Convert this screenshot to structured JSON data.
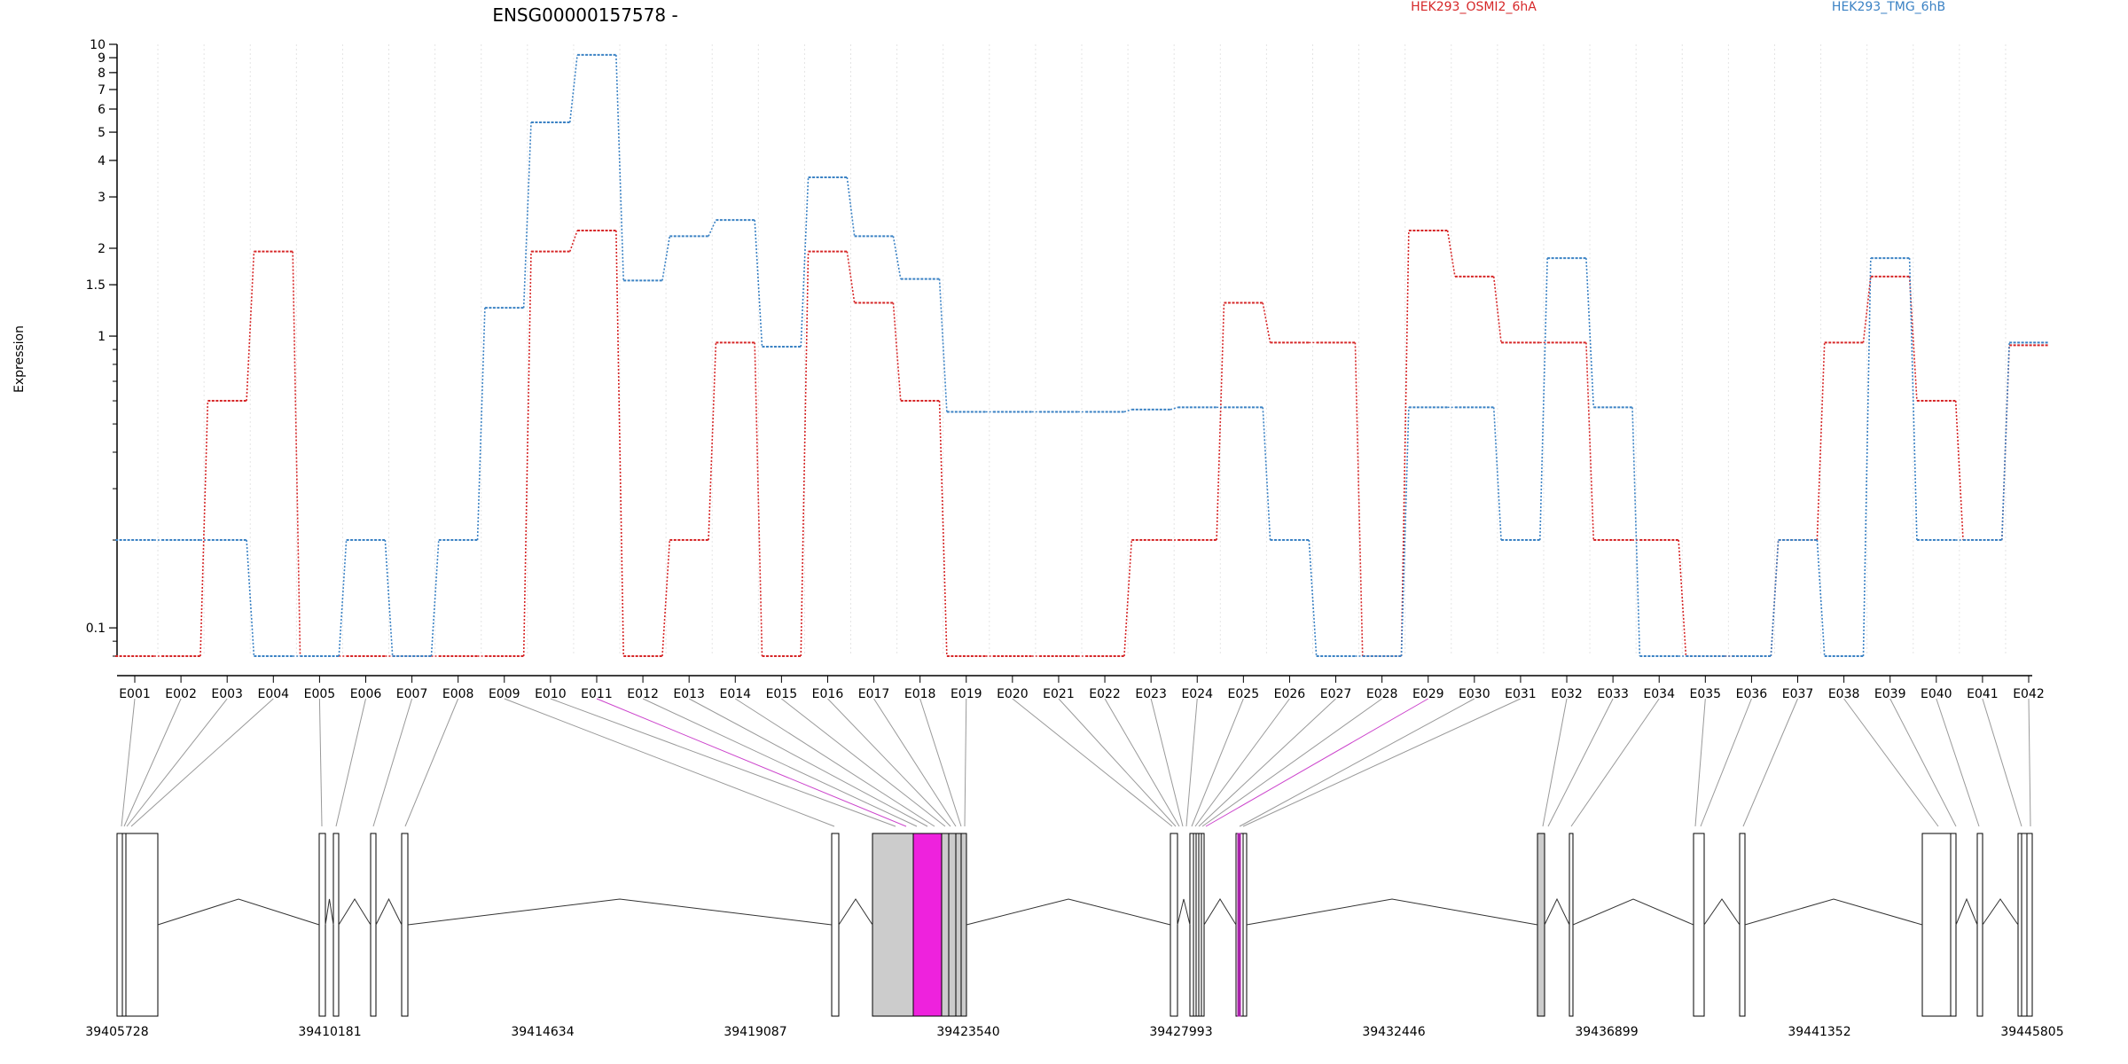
{
  "chart_data": {
    "type": "line",
    "title": "ENSG00000157578 -",
    "ylabel": "Expression",
    "xlabel": "",
    "y_scale": "log",
    "y_ticks": [
      0.1,
      1,
      1.5,
      2,
      3,
      4,
      5,
      6,
      7,
      8,
      9,
      10
    ],
    "ylim": [
      0.08,
      10
    ],
    "grid": "vertical dotted lines at each exon",
    "legend_placement": "top",
    "categories": [
      "E001",
      "E002",
      "E003",
      "E004",
      "E005",
      "E006",
      "E007",
      "E008",
      "E009",
      "E010",
      "E011",
      "E012",
      "E013",
      "E014",
      "E015",
      "E016",
      "E017",
      "E018",
      "E019",
      "E020",
      "E021",
      "E022",
      "E023",
      "E024",
      "E025",
      "E026",
      "E027",
      "E028",
      "E029",
      "E030",
      "E031",
      "E032",
      "E033",
      "E034",
      "E035",
      "E036",
      "E037",
      "E038",
      "E039",
      "E040",
      "E041",
      "E042"
    ],
    "series": [
      {
        "name": "HEK293_OSMI2_6hA",
        "color": "#d62728",
        "values": [
          0.08,
          0.08,
          0.6,
          1.95,
          0.08,
          0.08,
          0.08,
          0.08,
          0.08,
          1.95,
          2.3,
          0.08,
          0.2,
          0.95,
          0.08,
          1.95,
          1.3,
          0.6,
          0.08,
          0.08,
          0.08,
          0.08,
          0.2,
          0.2,
          1.3,
          0.95,
          0.95,
          0.08,
          2.3,
          1.6,
          0.95,
          0.95,
          0.2,
          0.2,
          0.08,
          0.08,
          0.2,
          0.95,
          1.6,
          0.6,
          0.2,
          0.93
        ]
      },
      {
        "name": "HEK293_TMG_6hB",
        "color": "#3b82c4",
        "values": [
          0.2,
          0.2,
          0.2,
          0.08,
          0.08,
          0.2,
          0.08,
          0.2,
          1.25,
          5.4,
          9.2,
          1.55,
          2.2,
          2.5,
          0.92,
          3.5,
          2.2,
          1.57,
          0.55,
          0.55,
          0.55,
          0.55,
          0.56,
          0.57,
          0.57,
          0.2,
          0.08,
          0.08,
          0.57,
          0.57,
          0.2,
          1.85,
          0.57,
          0.08,
          0.08,
          0.08,
          0.2,
          0.08,
          1.85,
          0.2,
          0.2,
          0.95
        ]
      }
    ],
    "genomic_axis": {
      "tick_labels": [
        "39405728",
        "39410181",
        "39414634",
        "39419087",
        "39423540",
        "39427993",
        "39432446",
        "39436899",
        "39441352",
        "39445805"
      ],
      "range": [
        39405728,
        39445805
      ]
    },
    "highlighted_exons": [
      "E011",
      "E029"
    ],
    "gene_model_colors": {
      "exon_fill": "#ffffff",
      "shaded_fill": "#cccccc",
      "highlight_fill": "#ee22dd",
      "highlight_line": "#cc44cc"
    }
  }
}
